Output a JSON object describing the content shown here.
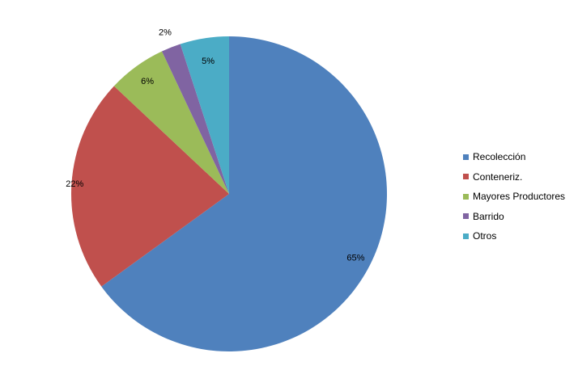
{
  "chart_data": {
    "type": "pie",
    "categories": [
      "Recolección",
      "Conteneriz.",
      "Mayores Productores",
      "Barrido",
      "Otros"
    ],
    "values": [
      65,
      22,
      6,
      2,
      5
    ],
    "labels": [
      "65%",
      "22%",
      "6%",
      "2%",
      "5%"
    ],
    "colors": [
      "#4F81BD",
      "#C0504D",
      "#9BBB59",
      "#8064A2",
      "#4BACC6"
    ],
    "start_angle": "12 o'clock",
    "direction": "clockwise",
    "legend": "right"
  }
}
